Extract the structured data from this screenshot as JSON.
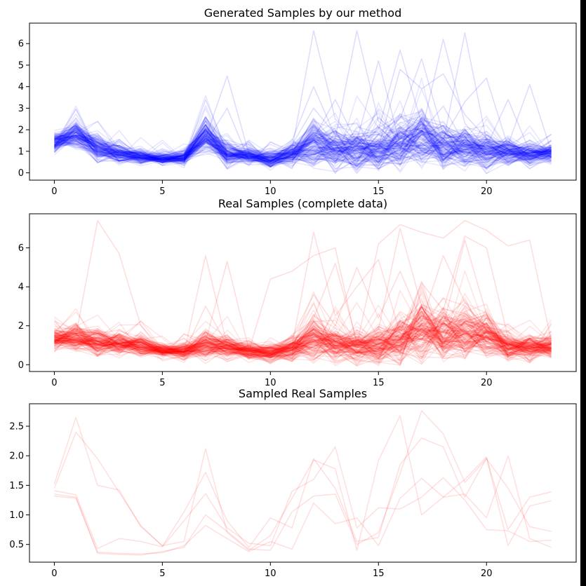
{
  "chart_data": [
    {
      "type": "line",
      "title": "Generated Samples by our method",
      "color": "#0000ff",
      "xlim": [
        -1.15,
        24.15
      ],
      "ylim": [
        -0.34,
        6.95
      ],
      "xticks": [
        0,
        5,
        10,
        15,
        20
      ],
      "yticks": [
        0,
        1,
        2,
        3,
        4,
        5,
        6
      ],
      "x": [
        0,
        1,
        2,
        3,
        4,
        5,
        6,
        7,
        8,
        9,
        10,
        11,
        12,
        13,
        14,
        15,
        16,
        17,
        18,
        19,
        20,
        21,
        22,
        23
      ],
      "profile": {
        "base": [
          1.4,
          1.8,
          1.1,
          0.9,
          0.75,
          0.65,
          0.7,
          1.7,
          0.85,
          0.8,
          0.6,
          0.9,
          1.35,
          1.1,
          1.05,
          1.0,
          1.3,
          1.6,
          1.3,
          1.2,
          1.0,
          0.95,
          0.85,
          0.9
        ],
        "spread": [
          0.35,
          0.5,
          0.55,
          0.4,
          0.3,
          0.25,
          0.3,
          0.6,
          0.45,
          0.3,
          0.35,
          0.45,
          0.8,
          0.8,
          0.8,
          0.8,
          0.9,
          1.0,
          0.9,
          0.8,
          0.7,
          0.5,
          0.45,
          0.4
        ],
        "lineCount": 140
      },
      "series": [
        {
          "values": [
            1.6,
            2.0,
            1.3,
            1.0,
            0.9,
            0.7,
            0.6,
            3.4,
            1.0,
            0.8,
            0.5,
            1.1,
            6.6,
            2.5,
            1.4,
            1.2,
            2.6,
            1.9,
            3.1,
            1.3,
            1.2,
            0.9,
            0.8,
            0.9
          ]
        },
        {
          "values": [
            1.5,
            1.9,
            1.1,
            0.9,
            0.8,
            0.6,
            0.7,
            1.6,
            4.5,
            0.9,
            0.7,
            1.0,
            2.0,
            1.6,
            6.6,
            2.4,
            1.6,
            2.1,
            1.4,
            6.5,
            1.5,
            1.0,
            0.9,
            1.1
          ]
        },
        {
          "values": [
            1.3,
            1.7,
            1.2,
            0.8,
            0.7,
            0.6,
            0.8,
            2.0,
            1.0,
            0.7,
            0.8,
            1.2,
            2.2,
            1.4,
            1.5,
            5.2,
            1.3,
            1.9,
            6.2,
            2.3,
            1.1,
            1.3,
            4.1,
            1.0
          ]
        },
        {
          "values": [
            1.4,
            1.6,
            1.0,
            1.0,
            0.7,
            0.5,
            0.6,
            1.8,
            0.9,
            0.8,
            0.6,
            1.3,
            3.0,
            1.8,
            1.3,
            2.0,
            5.7,
            2.3,
            1.6,
            3.3,
            4.4,
            1.2,
            0.9,
            1.2
          ]
        },
        {
          "values": [
            1.7,
            2.2,
            1.4,
            0.9,
            0.8,
            0.6,
            0.7,
            2.6,
            1.2,
            0.7,
            0.9,
            1.5,
            4.0,
            1.7,
            1.8,
            1.9,
            2.5,
            5.3,
            1.8,
            1.5,
            1.2,
            3.4,
            1.0,
            1.8
          ]
        },
        {
          "values": [
            1.2,
            1.5,
            1.0,
            0.8,
            0.6,
            0.5,
            0.6,
            1.4,
            3.0,
            0.6,
            0.5,
            0.8,
            1.6,
            3.4,
            1.4,
            1.2,
            4.8,
            3.9,
            4.6,
            2.7,
            1.6,
            1.1,
            0.8,
            0.9
          ]
        }
      ]
    },
    {
      "type": "line",
      "title": "Real Samples (complete data)",
      "color": "#ff0000",
      "xlim": [
        -1.15,
        24.15
      ],
      "ylim": [
        -0.35,
        7.75
      ],
      "xticks": [
        0,
        5,
        10,
        15,
        20
      ],
      "yticks": [
        0,
        2,
        4,
        6
      ],
      "x": [
        0,
        1,
        2,
        3,
        4,
        5,
        6,
        7,
        8,
        9,
        10,
        11,
        12,
        13,
        14,
        15,
        16,
        17,
        18,
        19,
        20,
        21,
        22,
        23
      ],
      "profile": {
        "base": [
          1.3,
          1.4,
          1.2,
          1.1,
          1.0,
          0.7,
          0.65,
          1.0,
          0.9,
          0.7,
          0.6,
          0.8,
          1.3,
          1.0,
          0.9,
          0.9,
          1.3,
          1.8,
          1.6,
          1.7,
          1.5,
          0.9,
          0.9,
          0.9
        ],
        "spread": [
          0.45,
          0.55,
          0.6,
          0.5,
          0.45,
          0.3,
          0.35,
          0.6,
          0.5,
          0.35,
          0.35,
          0.5,
          0.9,
          0.7,
          0.7,
          0.8,
          1.0,
          1.3,
          1.1,
          1.1,
          0.9,
          0.55,
          0.5,
          0.45
        ],
        "lineCount": 140
      },
      "series": [
        {
          "values": [
            1.3,
            1.5,
            7.4,
            5.7,
            2.0,
            0.8,
            0.7,
            1.0,
            0.9,
            0.7,
            0.6,
            0.8,
            1.2,
            1.0,
            0.9,
            0.8,
            1.0,
            1.5,
            1.3,
            1.6,
            1.2,
            0.8,
            0.7,
            0.8
          ]
        },
        {
          "values": [
            1.4,
            1.2,
            1.0,
            1.0,
            0.9,
            0.7,
            0.6,
            5.6,
            1.0,
            0.7,
            4.4,
            4.8,
            5.6,
            6.0,
            1.0,
            6.2,
            7.2,
            6.8,
            6.5,
            7.4,
            6.9,
            6.1,
            6.4,
            1.2
          ]
        },
        {
          "values": [
            1.2,
            1.3,
            1.1,
            1.0,
            0.9,
            0.7,
            0.8,
            1.2,
            5.3,
            0.8,
            0.7,
            1.0,
            6.8,
            2.5,
            4.0,
            5.4,
            1.6,
            4.2,
            2.8,
            6.6,
            6.0,
            1.4,
            1.0,
            1.0
          ]
        },
        {
          "values": [
            1.5,
            1.6,
            1.2,
            1.1,
            1.0,
            0.6,
            0.7,
            1.4,
            1.1,
            0.8,
            0.9,
            1.4,
            3.6,
            2.0,
            5.0,
            2.4,
            4.8,
            2.2,
            5.6,
            3.2,
            1.8,
            1.2,
            1.0,
            1.1
          ]
        },
        {
          "values": [
            1.1,
            1.2,
            1.0,
            0.9,
            0.8,
            0.6,
            0.6,
            3.0,
            1.0,
            0.7,
            0.6,
            1.1,
            2.4,
            5.2,
            1.2,
            1.8,
            7.0,
            3.0,
            2.0,
            6.4,
            2.6,
            1.0,
            0.9,
            0.9
          ]
        }
      ]
    },
    {
      "type": "line",
      "title": "Sampled Real Samples",
      "color": "#ff0000",
      "xlim": [
        -1.15,
        24.15
      ],
      "ylim": [
        0.2,
        2.88
      ],
      "xticks": [
        0,
        5,
        10,
        15,
        20
      ],
      "yticks": [
        0.5,
        1.0,
        1.5,
        2.0,
        2.5
      ],
      "ytickLabels": [
        "0.5",
        "1.0",
        "1.5",
        "2.0",
        "2.5"
      ],
      "x": [
        0,
        1,
        2,
        3,
        4,
        5,
        6,
        7,
        8,
        9,
        10,
        11,
        12,
        13,
        14,
        15,
        16,
        17,
        18,
        19,
        20,
        21,
        22,
        23
      ],
      "series": [
        {
          "values": [
            1.52,
            2.65,
            1.5,
            1.42,
            0.8,
            0.48,
            0.55,
            2.12,
            0.7,
            0.4,
            0.65,
            1.28,
            1.93,
            1.78,
            0.4,
            1.92,
            2.68,
            1.0,
            1.3,
            1.6,
            1.98,
            0.48,
            1.15,
            1.24
          ]
        },
        {
          "values": [
            1.45,
            2.4,
            1.95,
            1.38,
            0.82,
            0.47,
            1.05,
            1.72,
            0.9,
            0.45,
            0.95,
            0.78,
            1.95,
            1.45,
            0.55,
            0.62,
            1.85,
            2.3,
            2.15,
            1.3,
            1.96,
            0.75,
            1.3,
            1.39
          ]
        },
        {
          "values": [
            1.35,
            1.3,
            0.35,
            0.33,
            0.32,
            0.38,
            0.45,
            1.0,
            0.72,
            0.42,
            0.4,
            1.05,
            1.32,
            1.35,
            0.5,
            0.7,
            1.7,
            2.76,
            2.37,
            1.55,
            1.95,
            1.45,
            0.8,
            0.72
          ]
        },
        {
          "values": [
            1.32,
            1.28,
            0.37,
            0.35,
            0.34,
            0.36,
            0.48,
            0.82,
            0.6,
            0.38,
            0.55,
            0.42,
            1.2,
            0.85,
            0.95,
            0.48,
            1.28,
            1.62,
            1.3,
            1.35,
            0.95,
            2.0,
            0.6,
            0.45
          ]
        },
        {
          "values": [
            1.41,
            1.34,
            0.43,
            0.6,
            0.55,
            0.46,
            0.9,
            1.36,
            0.78,
            0.52,
            0.48,
            1.4,
            1.6,
            2.15,
            0.78,
            1.12,
            1.1,
            1.3,
            1.63,
            1.25,
            0.75,
            0.73,
            0.55,
            0.57
          ]
        }
      ]
    }
  ]
}
